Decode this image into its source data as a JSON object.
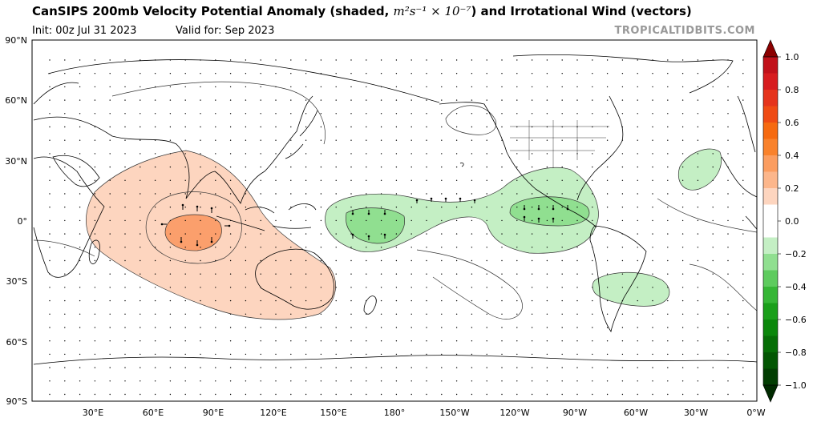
{
  "header": {
    "title_prefix": "CanSIPS 200mb Velocity Potential Anomaly (shaded, ",
    "title_math": "m²s⁻¹ × 10⁻⁷",
    "title_suffix": ") and Irrotational Wind (vectors)",
    "init": "Init: 00z Jul 31 2023",
    "valid": "Valid for: Sep 2023",
    "credit": "TROPICALTIDBITS.COM"
  },
  "map": {
    "lat_labels": [
      "90°N",
      "60°N",
      "30°N",
      "0°",
      "30°S",
      "60°S",
      "90°S"
    ],
    "lon_labels": [
      "30°E",
      "60°E",
      "90°E",
      "120°E",
      "150°E",
      "180°",
      "150°W",
      "120°W",
      "90°W",
      "60°W",
      "30°W",
      "0°W"
    ],
    "colors": {
      "positive_light": "#fdd5bf",
      "positive_mid": "#fb9f6c",
      "negative_light": "#c4efc4",
      "negative_mid": "#8fdf8f",
      "land_outline": "#000000"
    }
  },
  "colorbar": {
    "labels": [
      "1.0",
      "0.8",
      "0.6",
      "0.4",
      "0.2",
      "0.0",
      "−0.2",
      "−0.4",
      "−0.6",
      "−0.8",
      "−1.0"
    ],
    "colors": [
      "#c1111a",
      "#d71c1f",
      "#e5341c",
      "#ef4b14",
      "#f66a10",
      "#f9822c",
      "#fb9d60",
      "#fcb68b",
      "#fdd5bf",
      "#ffffff",
      "#ffffff",
      "#c4efc4",
      "#90df90",
      "#5ecb5e",
      "#36b636",
      "#1a9f1a",
      "#0b870b",
      "#066e06",
      "#035603",
      "#023d02"
    ]
  }
}
